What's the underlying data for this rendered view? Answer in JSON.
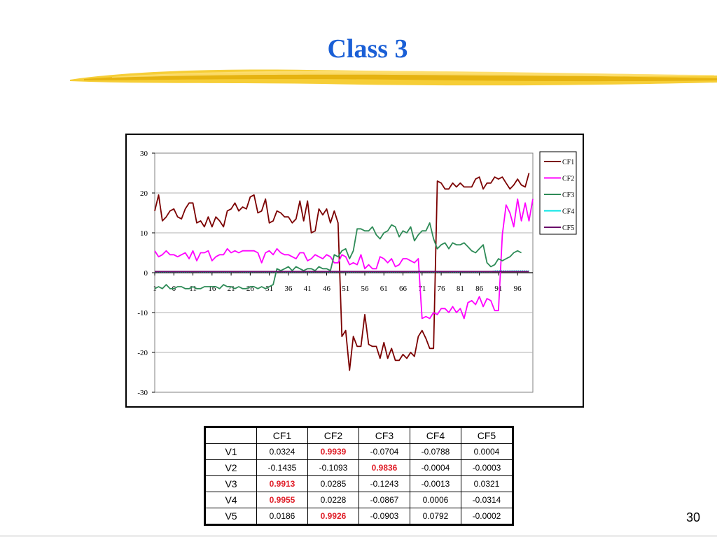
{
  "slide": {
    "title": "Class 3",
    "page_number": "30",
    "brush_color": "#f4c614"
  },
  "chart_data": {
    "type": "line",
    "title": "",
    "xlabel": "",
    "ylabel": "",
    "ylim": [
      -30,
      30
    ],
    "yticks": [
      "30",
      "20",
      "10",
      "0",
      "-10",
      "-20",
      "-30"
    ],
    "ytick_values": [
      30,
      20,
      10,
      0,
      -10,
      -20,
      -30
    ],
    "xticks": [
      "1",
      "6",
      "11",
      "16",
      "21",
      "26",
      "31",
      "36",
      "41",
      "46",
      "51",
      "56",
      "61",
      "66",
      "71",
      "76",
      "81",
      "86",
      "91",
      "96"
    ],
    "x_range": [
      1,
      100
    ],
    "grid": "horizontal",
    "legend": "right",
    "series": [
      {
        "name": "CF1",
        "color": "#7b0000",
        "values": [
          15.5,
          19.5,
          13,
          14,
          15.5,
          16,
          14,
          13.5,
          16,
          17.5,
          17.5,
          12.5,
          13,
          11.5,
          14,
          11.5,
          14,
          13,
          11.5,
          15.5,
          16,
          17.5,
          15.5,
          16.5,
          16,
          19,
          19.5,
          15,
          15.5,
          18.5,
          12.5,
          13,
          15.5,
          15,
          14,
          14,
          12.5,
          13.5,
          18,
          13,
          18,
          10,
          10.5,
          16,
          14.5,
          16,
          12.5,
          15.5,
          12.5,
          -16,
          -14.5,
          -24.5,
          -16,
          -18.5,
          -18.5,
          -10.5,
          -18,
          -18.5,
          -18.5,
          -21.5,
          -17.5,
          -21.5,
          -19,
          -22,
          -22,
          -20.5,
          -21.5,
          -20,
          -21,
          -16,
          -14.5,
          -16.5,
          -19,
          -19,
          23,
          22.5,
          21,
          21,
          22.5,
          21.5,
          22.5,
          21.5,
          21.5,
          21.5,
          23.5,
          24,
          21,
          22.5,
          22.5,
          24,
          23.5,
          24,
          22.5,
          21,
          22,
          23.5,
          22,
          21.5,
          25
        ]
      },
      {
        "name": "CF2",
        "color": "#ff00ff",
        "values": [
          5.5,
          4,
          4.5,
          5.5,
          4.5,
          4.5,
          4,
          4.5,
          5,
          3.5,
          5.5,
          3,
          5,
          5,
          5.5,
          3,
          4,
          4.5,
          4.5,
          6,
          5,
          5.5,
          5,
          5.5,
          5.5,
          5.5,
          5.5,
          5,
          2.5,
          5,
          5.5,
          4.5,
          6,
          5,
          4.5,
          4.5,
          4,
          3.5,
          5,
          5,
          3,
          3.5,
          4.5,
          4,
          3.5,
          4.5,
          4,
          2.5,
          2.5,
          4.5,
          4,
          2,
          2.5,
          2,
          4.5,
          1,
          2,
          1,
          1,
          4,
          3.5,
          2.5,
          3.5,
          1.5,
          2,
          3.5,
          3.5,
          3,
          2.5,
          3.5,
          -11.5,
          -11,
          -11.5,
          -10,
          -10.5,
          -9,
          -9,
          -10,
          -8.5,
          -10,
          -9,
          -11.5,
          -7.5,
          -7,
          -8,
          -6,
          -8.5,
          -6.5,
          -7,
          -9.5,
          -9.5,
          9.5,
          17,
          15,
          11.5,
          18.5,
          13,
          17.5,
          13,
          18.5
        ]
      },
      {
        "name": "CF3",
        "color": "#2e8b57",
        "values": [
          -4,
          -3.5,
          -4,
          -3,
          -4,
          -4,
          -3.5,
          -3.5,
          -4,
          -4,
          -3.5,
          -4,
          -4,
          -3.5,
          -3.5,
          -3.5,
          -3.5,
          -4,
          -3,
          -3.5,
          -3.5,
          -4,
          -3.5,
          -4,
          -4,
          -3.5,
          -3.5,
          -4,
          -3.5,
          -4,
          -3.5,
          -3,
          1,
          0.5,
          1,
          1.5,
          0.5,
          1.5,
          1,
          0.5,
          1,
          1,
          0.5,
          1.5,
          1,
          1,
          0.5,
          4.5,
          4,
          5.5,
          6,
          3.5,
          5.5,
          11,
          11,
          10.5,
          10.5,
          11.5,
          9.5,
          8.5,
          10,
          10.5,
          12,
          11.5,
          9,
          10.5,
          10,
          11.5,
          8,
          9.5,
          10.5,
          10.5,
          12.5,
          8.5,
          6,
          7,
          7.5,
          6,
          7.5,
          7,
          7,
          7.5,
          6.5,
          5.5,
          5,
          6,
          7,
          2.5,
          1.5,
          2,
          3.5,
          3,
          3.5,
          4,
          5,
          5.5,
          5
        ]
      },
      {
        "name": "CF4",
        "color": "#00e5e5",
        "values": [
          0.2,
          0.2,
          0.2,
          0.2,
          0.2,
          0.2,
          0.2,
          0.2,
          0.2,
          0.2,
          0.2,
          0.2,
          0.2,
          0.2,
          0.2,
          0.2,
          0.2,
          0.2,
          0.2,
          0.2,
          0.2,
          0.2,
          0.2,
          0.2,
          0.2,
          0.2,
          0.2,
          0.2,
          0.2,
          0.2,
          0.2,
          0.2,
          0.2,
          0.2,
          0.2,
          0.2,
          0.2,
          0.2,
          0.2,
          0.2,
          0.2,
          0.2,
          0.2,
          0.2,
          0.2,
          0.2,
          0.2,
          0.2,
          0.2,
          0.2,
          0.2,
          0.2,
          0.2,
          0.2,
          0.2,
          0.2,
          0.2,
          0.2,
          0.2,
          0.2,
          0.2,
          0.2,
          0.2,
          0.2,
          0.2,
          0.2,
          0.2,
          0.2,
          0.2,
          0.2,
          0.2,
          0.2,
          0.2,
          0.2,
          0.2,
          0.2,
          0.2,
          0.2,
          0.2,
          0.2,
          0.2,
          0.2,
          0.2,
          0.2,
          0.2,
          0.2,
          0.2,
          0.2,
          0.2,
          0.5,
          0.5,
          0.5,
          0.5,
          0.5,
          0.5,
          0.5,
          0.5,
          0.5,
          0.5
        ]
      },
      {
        "name": "CF5",
        "color": "#6a0d6a",
        "values": [
          0.3,
          0.3,
          0.3,
          0.3,
          0.3,
          0.3,
          0.3,
          0.3,
          0.3,
          0.3,
          0.3,
          0.3,
          0.3,
          0.3,
          0.3,
          0.3,
          0.3,
          0.3,
          0.3,
          0.3,
          0.3,
          0.3,
          0.3,
          0.3,
          0.3,
          0.3,
          0.3,
          0.3,
          0.3,
          0.3,
          0.3,
          0.3,
          0.3,
          0.3,
          0.3,
          0.3,
          0.3,
          0.3,
          0.3,
          0.3,
          0.3,
          0.3,
          0.3,
          0.3,
          0.3,
          0.3,
          0.3,
          0.3,
          0.3,
          0.3,
          0.3,
          0.3,
          0.3,
          0.3,
          0.3,
          0.3,
          0.3,
          0.3,
          0.3,
          0.3,
          0.3,
          0.3,
          0.3,
          0.3,
          0.3,
          0.3,
          0.3,
          0.3,
          0.3,
          0.3,
          0.3,
          0.3,
          0.3,
          0.3,
          0.3,
          0.3,
          0.3,
          0.3,
          0.3,
          0.3,
          0.3,
          0.3,
          0.3,
          0.3,
          0.3,
          0.3,
          0.3,
          0.3,
          0.3,
          0.3,
          0.3,
          0.3,
          0.3,
          0.3,
          0.3,
          0.3,
          0.3,
          0.3,
          0.3
        ]
      }
    ]
  },
  "table": {
    "headers": [
      "",
      "CF1",
      "CF2",
      "CF3",
      "CF4",
      "CF5"
    ],
    "rows": [
      {
        "label": "V1",
        "cells": [
          "0.0324",
          "0.9939",
          "-0.0704",
          "-0.0788",
          "0.0004"
        ],
        "highlight": [
          1
        ]
      },
      {
        "label": "V2",
        "cells": [
          "-0.1435",
          "-0.1093",
          "0.9836",
          "-0.0004",
          "-0.0003"
        ],
        "highlight": [
          2
        ]
      },
      {
        "label": "V3",
        "cells": [
          "0.9913",
          "0.0285",
          "-0.1243",
          "-0.0013",
          "0.0321"
        ],
        "highlight": [
          0
        ]
      },
      {
        "label": "V4",
        "cells": [
          "0.9955",
          "0.0228",
          "-0.0867",
          "0.0006",
          "-0.0314"
        ],
        "highlight": [
          0
        ]
      },
      {
        "label": "V5",
        "cells": [
          "0.0186",
          "0.9926",
          "-0.0903",
          "0.0792",
          "-0.0002"
        ],
        "highlight": [
          1
        ]
      }
    ],
    "highlight_color": "#e0202a"
  }
}
